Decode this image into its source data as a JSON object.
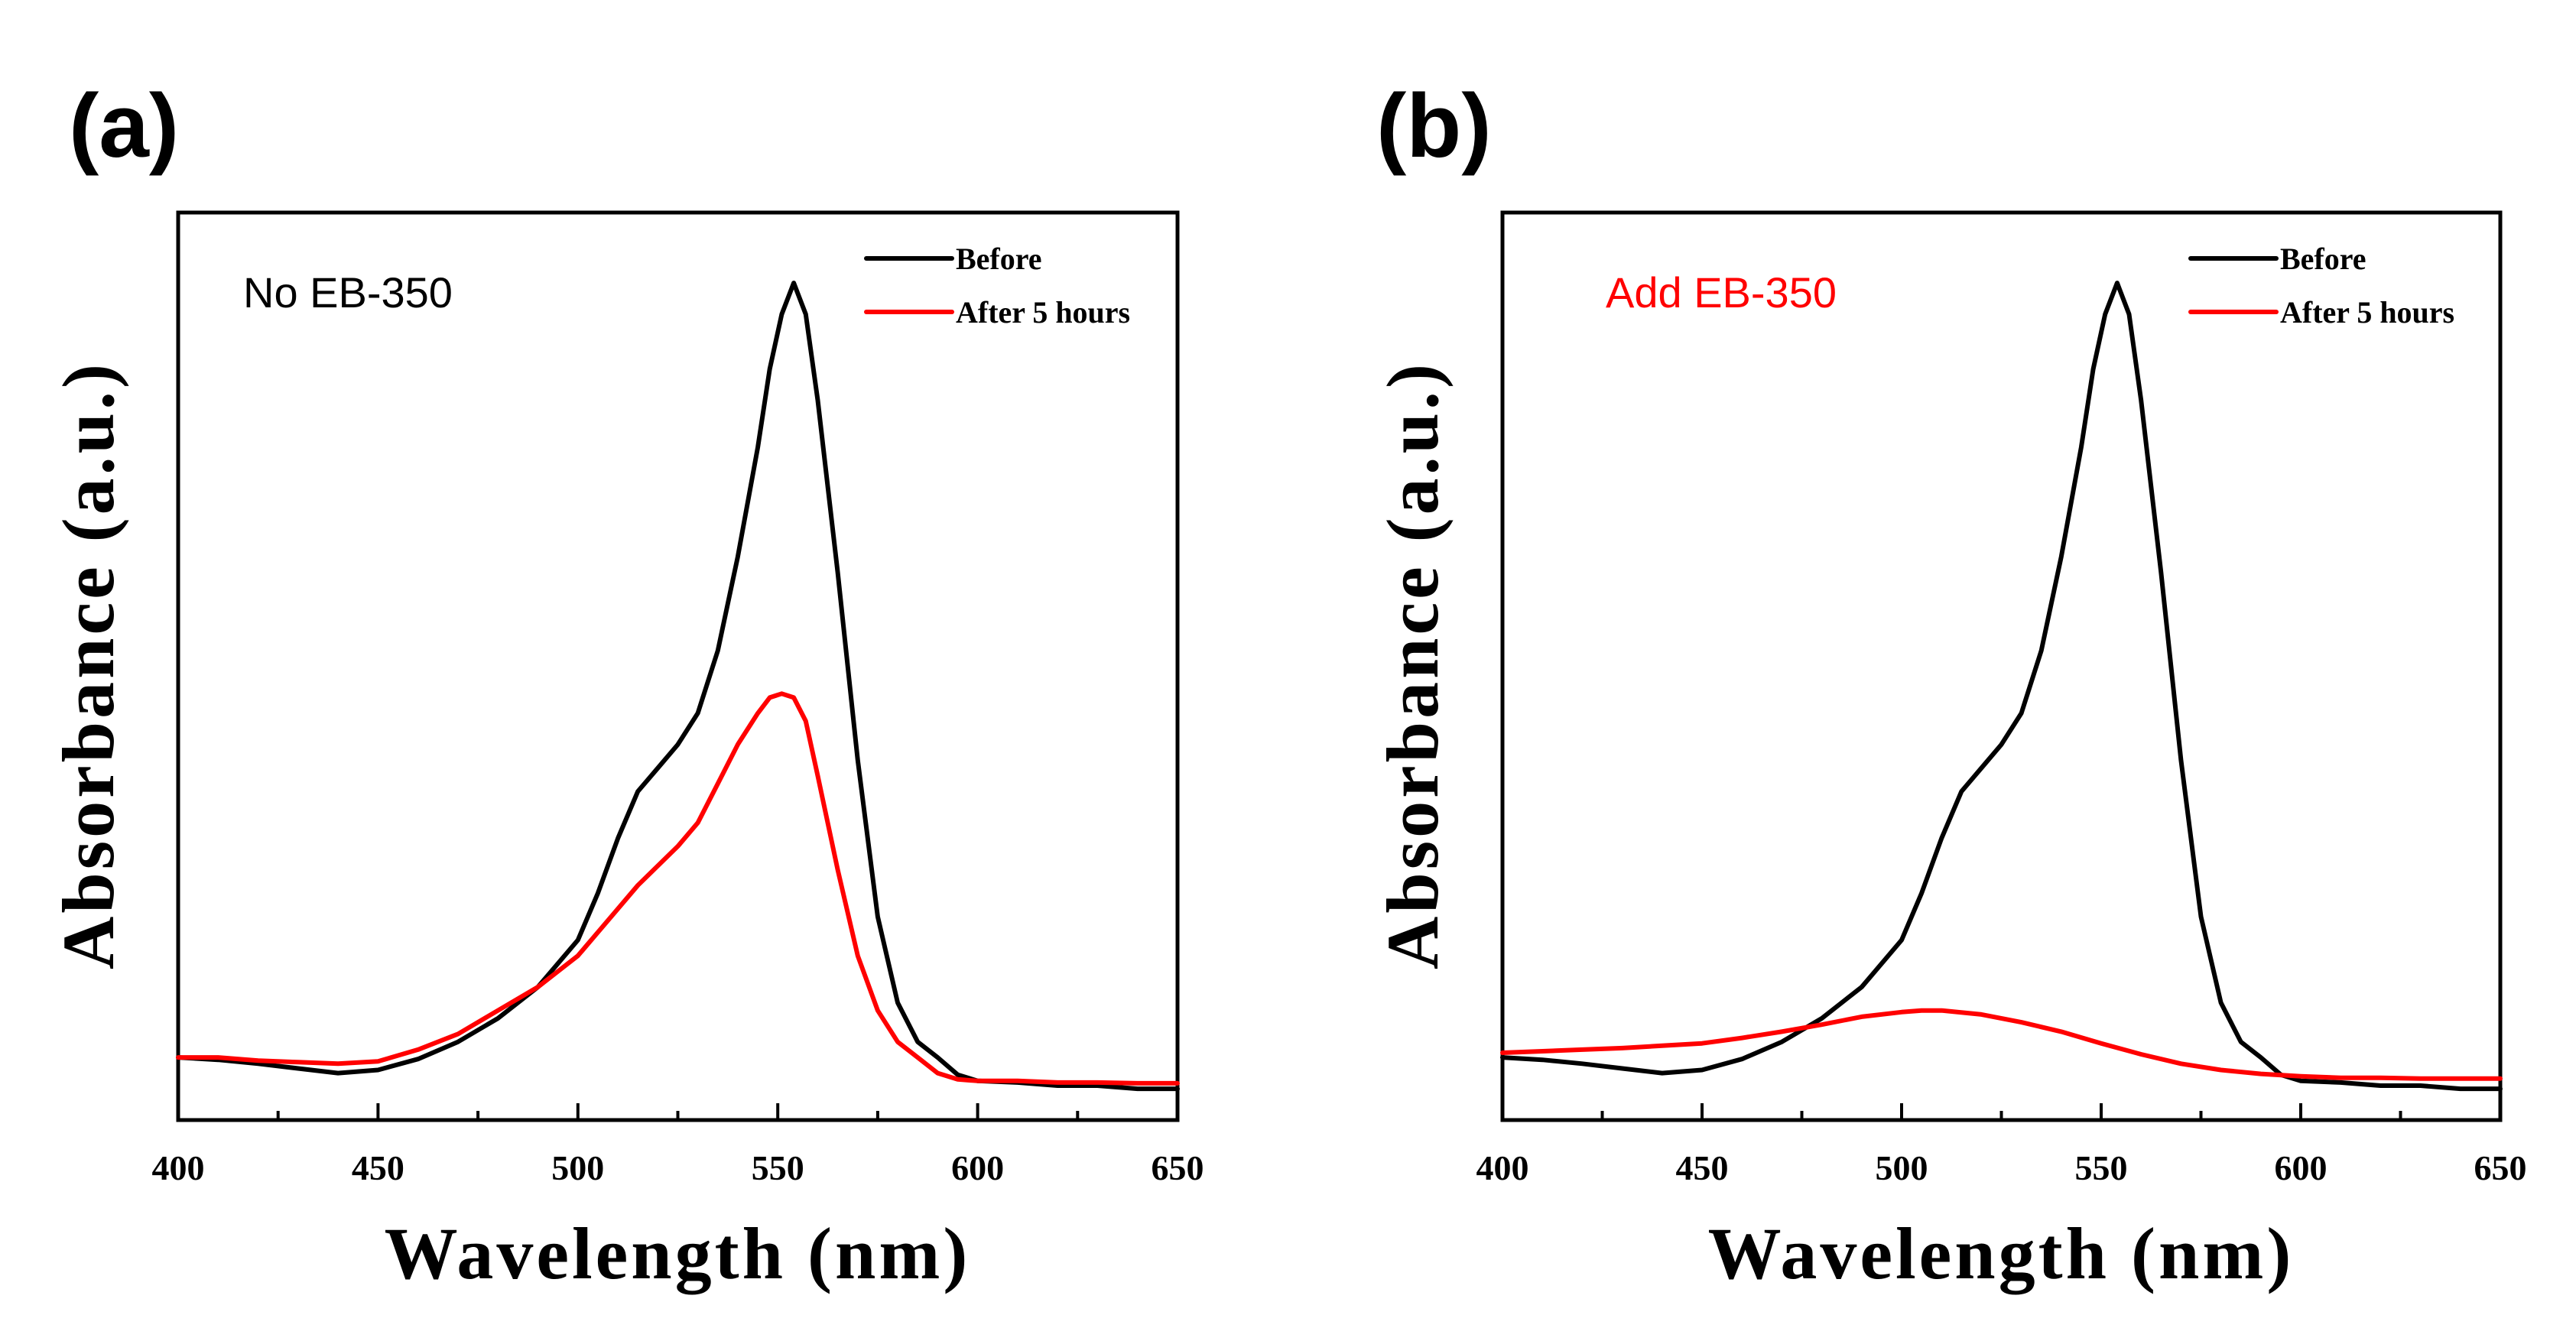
{
  "chart_data": [
    {
      "panel_label": "(a)",
      "type": "line",
      "title": "",
      "annotation": "No EB-350",
      "annotation_color": "#000000",
      "xlabel": "Wavelength (nm)",
      "ylabel": "Absorbance (a.u.)",
      "xlim": [
        400,
        650
      ],
      "ylim": [
        -0.08,
        1.08
      ],
      "xticks": [
        400,
        450,
        500,
        550,
        600,
        650
      ],
      "xtick_labels": [
        "400",
        "450",
        "500",
        "550",
        "600",
        "650"
      ],
      "grid": false,
      "legend_position": "top-right",
      "series": [
        {
          "name": "Before",
          "color": "#000000",
          "x": [
            400,
            410,
            420,
            430,
            440,
            450,
            460,
            470,
            480,
            490,
            500,
            505,
            510,
            515,
            520,
            525,
            530,
            535,
            540,
            545,
            548,
            551,
            554,
            557,
            560,
            565,
            570,
            575,
            580,
            585,
            590,
            595,
            600,
            610,
            620,
            630,
            640,
            650
          ],
          "y": [
            0.0,
            -0.003,
            -0.008,
            -0.014,
            -0.02,
            -0.016,
            -0.002,
            0.02,
            0.05,
            0.09,
            0.15,
            0.21,
            0.28,
            0.34,
            0.37,
            0.4,
            0.44,
            0.52,
            0.64,
            0.78,
            0.88,
            0.95,
            0.99,
            0.95,
            0.84,
            0.62,
            0.38,
            0.18,
            0.07,
            0.02,
            0.0,
            -0.022,
            -0.03,
            -0.032,
            -0.036,
            -0.036,
            -0.04,
            -0.04
          ]
        },
        {
          "name": "After 5 hours",
          "color": "#ff0000",
          "x": [
            400,
            410,
            420,
            430,
            440,
            450,
            460,
            470,
            480,
            490,
            500,
            505,
            510,
            515,
            520,
            525,
            530,
            535,
            540,
            545,
            548,
            551,
            554,
            557,
            560,
            565,
            570,
            575,
            580,
            585,
            590,
            595,
            600,
            610,
            620,
            630,
            640,
            650
          ],
          "y": [
            0.0,
            0.0,
            -0.004,
            -0.006,
            -0.008,
            -0.005,
            0.01,
            0.03,
            0.06,
            0.09,
            0.13,
            0.16,
            0.19,
            0.22,
            0.245,
            0.27,
            0.3,
            0.35,
            0.4,
            0.44,
            0.46,
            0.465,
            0.46,
            0.43,
            0.36,
            0.24,
            0.13,
            0.06,
            0.02,
            0.0,
            -0.02,
            -0.028,
            -0.03,
            -0.03,
            -0.032,
            -0.032,
            -0.033,
            -0.033
          ]
        }
      ]
    },
    {
      "panel_label": "(b)",
      "type": "line",
      "title": "",
      "annotation": "Add EB-350",
      "annotation_color": "#ff0000",
      "xlabel": "Wavelength (nm)",
      "ylabel": "Absorbance (a.u.)",
      "xlim": [
        400,
        650
      ],
      "ylim": [
        -0.08,
        1.08
      ],
      "xticks": [
        400,
        450,
        500,
        550,
        600,
        650
      ],
      "xtick_labels": [
        "400",
        "450",
        "500",
        "550",
        "600",
        "650"
      ],
      "grid": false,
      "legend_position": "top-right",
      "series": [
        {
          "name": "Before",
          "color": "#000000",
          "x": [
            400,
            410,
            420,
            430,
            440,
            450,
            460,
            470,
            480,
            490,
            500,
            505,
            510,
            515,
            520,
            525,
            530,
            535,
            540,
            545,
            548,
            551,
            554,
            557,
            560,
            565,
            570,
            575,
            580,
            585,
            590,
            595,
            600,
            610,
            620,
            630,
            640,
            650
          ],
          "y": [
            0.0,
            -0.003,
            -0.008,
            -0.014,
            -0.02,
            -0.016,
            -0.002,
            0.02,
            0.05,
            0.09,
            0.15,
            0.21,
            0.28,
            0.34,
            0.37,
            0.4,
            0.44,
            0.52,
            0.64,
            0.78,
            0.88,
            0.95,
            0.99,
            0.95,
            0.84,
            0.62,
            0.38,
            0.18,
            0.07,
            0.02,
            0.0,
            -0.022,
            -0.03,
            -0.032,
            -0.036,
            -0.036,
            -0.04,
            -0.04
          ]
        },
        {
          "name": "After 5 hours",
          "color": "#ff0000",
          "x": [
            400,
            410,
            420,
            430,
            440,
            450,
            460,
            470,
            480,
            490,
            500,
            505,
            510,
            520,
            530,
            540,
            550,
            560,
            570,
            580,
            590,
            600,
            610,
            620,
            630,
            640,
            650
          ],
          "y": [
            0.006,
            0.008,
            0.01,
            0.012,
            0.015,
            0.018,
            0.025,
            0.033,
            0.042,
            0.052,
            0.058,
            0.06,
            0.06,
            0.055,
            0.045,
            0.033,
            0.018,
            0.004,
            -0.008,
            -0.016,
            -0.021,
            -0.024,
            -0.026,
            -0.026,
            -0.027,
            -0.027,
            -0.027
          ]
        }
      ]
    }
  ]
}
